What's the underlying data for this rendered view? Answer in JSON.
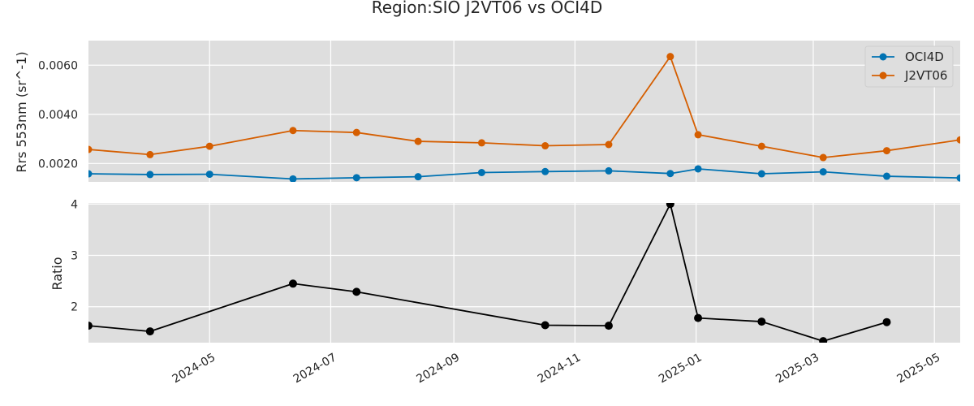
{
  "chart_data": {
    "type": "line",
    "title": "Region:SIO J2VT06 vs OCI4D",
    "x_axis": {
      "type": "date",
      "range": [
        "2024-03-01",
        "2025-05-14"
      ],
      "ticks": [
        "2024-05-01",
        "2024-07-01",
        "2024-09-01",
        "2024-11-01",
        "2025-01-01",
        "2025-03-01",
        "2025-05-01"
      ],
      "tick_labels": [
        "2024-05",
        "2024-07",
        "2024-09",
        "2024-11",
        "2025-01",
        "2025-03",
        "2025-05"
      ]
    },
    "grid": true,
    "panels": [
      {
        "ylabel": "Rrs 553nm (sr^-1)",
        "ylim": [
          0.00125,
          0.007
        ],
        "yticks": [
          0.002,
          0.004,
          0.006
        ],
        "ytick_labels": [
          "0.0020",
          "0.0040",
          "0.0060"
        ],
        "legend_position": "top-right",
        "series": [
          {
            "name": "OCI4D",
            "color": "#0072B2",
            "x": [
              "2024-03-01",
              "2024-04-01",
              "2024-05-01",
              "2024-06-12",
              "2024-07-14",
              "2024-08-14",
              "2024-09-15",
              "2024-10-17",
              "2024-11-18",
              "2024-12-19",
              "2025-01-02",
              "2025-02-03",
              "2025-03-06",
              "2025-04-07",
              "2025-05-14"
            ],
            "values": [
              0.00158,
              0.00155,
              0.00156,
              0.00137,
              0.00142,
              0.00146,
              0.00163,
              0.00167,
              0.0017,
              0.00159,
              0.00178,
              0.00158,
              0.00166,
              0.00148,
              0.00141
            ]
          },
          {
            "name": "J2VT06",
            "color": "#D55E00",
            "x": [
              "2024-03-01",
              "2024-04-01",
              "2024-05-01",
              "2024-06-12",
              "2024-07-14",
              "2024-08-14",
              "2024-09-15",
              "2024-10-17",
              "2024-11-18",
              "2024-12-19",
              "2025-01-02",
              "2025-02-03",
              "2025-03-06",
              "2025-04-07",
              "2025-05-14"
            ],
            "values": [
              0.00257,
              0.00236,
              0.0027,
              0.00334,
              0.00326,
              0.0029,
              0.00284,
              0.00272,
              0.00277,
              0.00635,
              0.00317,
              0.0027,
              0.00224,
              0.00252,
              0.00296
            ]
          }
        ]
      },
      {
        "ylabel": "Ratio",
        "ylim": [
          1.3,
          4.02
        ],
        "yticks": [
          2,
          3,
          4
        ],
        "ytick_labels": [
          "2",
          "3",
          "4"
        ],
        "series": [
          {
            "color": "#000000",
            "x": [
              "2024-03-01",
              "2024-04-01",
              "2024-06-12",
              "2024-07-14",
              "2024-10-17",
              "2024-11-18",
              "2024-12-19",
              "2025-01-02",
              "2025-02-03",
              "2025-03-06",
              "2025-04-07"
            ],
            "values": [
              1.63,
              1.52,
              2.45,
              2.29,
              1.64,
              1.63,
              4.0,
              1.78,
              1.71,
              1.33,
              1.7
            ]
          }
        ]
      }
    ]
  }
}
